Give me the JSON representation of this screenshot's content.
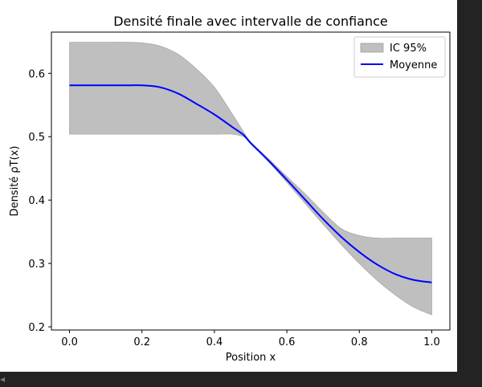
{
  "chart_data": {
    "type": "area",
    "title": "Densité finale avec intervalle de confiance",
    "xlabel": "Position x",
    "ylabel": "Densité ρT(x)",
    "xlim": [
      -0.05,
      1.05
    ],
    "ylim": [
      0.195,
      0.665
    ],
    "xticks": [
      0.0,
      0.2,
      0.4,
      0.6,
      0.8,
      1.0
    ],
    "xtick_labels": [
      "0.0",
      "0.2",
      "0.4",
      "0.6",
      "0.8",
      "1.0"
    ],
    "yticks": [
      0.2,
      0.3,
      0.4,
      0.5,
      0.6
    ],
    "ytick_labels": [
      "0.2",
      "0.3",
      "0.4",
      "0.5",
      "0.6"
    ],
    "grid": false,
    "legend": {
      "position": "top-right",
      "entries": [
        {
          "label": "IC 95%",
          "kind": "patch",
          "color": "#bfbfbf"
        },
        {
          "label": "Moyenne",
          "kind": "line",
          "color": "#0000ff"
        }
      ]
    },
    "series": [
      {
        "name": "Moyenne",
        "color": "#0000ff",
        "x": [
          0.0,
          0.05,
          0.1,
          0.15,
          0.2,
          0.25,
          0.3,
          0.35,
          0.4,
          0.45,
          0.48,
          0.5,
          0.55,
          0.6,
          0.65,
          0.7,
          0.75,
          0.8,
          0.85,
          0.9,
          0.95,
          1.0
        ],
        "y": [
          0.581,
          0.581,
          0.581,
          0.581,
          0.581,
          0.578,
          0.568,
          0.552,
          0.535,
          0.515,
          0.503,
          0.49,
          0.462,
          0.432,
          0.401,
          0.37,
          0.342,
          0.318,
          0.298,
          0.283,
          0.274,
          0.27
        ]
      },
      {
        "name": "IC 95%",
        "color": "#bfbfbf",
        "x": [
          0.0,
          0.05,
          0.1,
          0.15,
          0.2,
          0.25,
          0.3,
          0.35,
          0.4,
          0.45,
          0.48,
          0.5,
          0.55,
          0.6,
          0.65,
          0.7,
          0.75,
          0.8,
          0.85,
          0.9,
          0.95,
          1.0
        ],
        "lower": [
          0.504,
          0.504,
          0.504,
          0.504,
          0.504,
          0.504,
          0.504,
          0.504,
          0.504,
          0.504,
          0.5,
          0.49,
          0.46,
          0.428,
          0.395,
          0.362,
          0.33,
          0.3,
          0.273,
          0.25,
          0.231,
          0.219
        ],
        "upper": [
          0.649,
          0.649,
          0.649,
          0.649,
          0.648,
          0.643,
          0.63,
          0.607,
          0.578,
          0.535,
          0.508,
          0.492,
          0.465,
          0.437,
          0.41,
          0.381,
          0.355,
          0.344,
          0.34,
          0.34,
          0.34,
          0.34
        ]
      }
    ]
  }
}
